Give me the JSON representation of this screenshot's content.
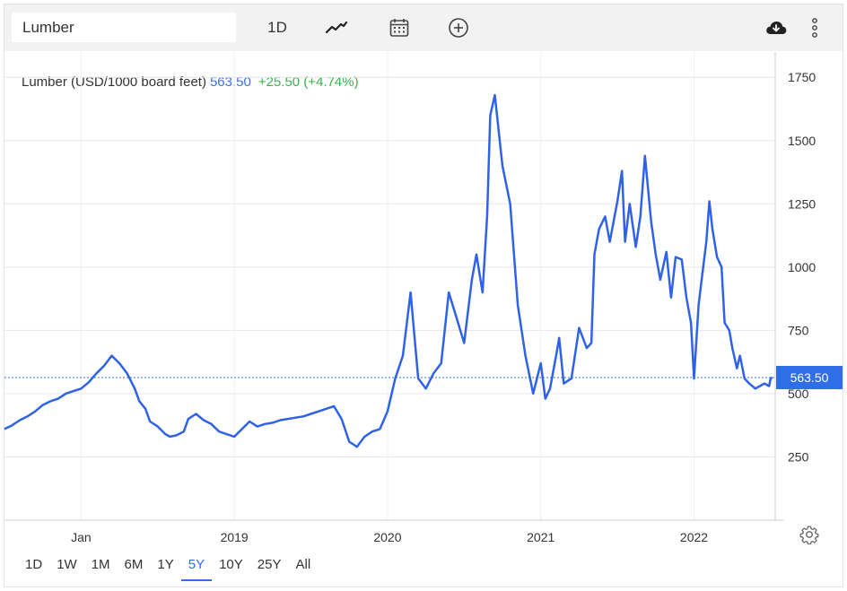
{
  "toolbar": {
    "symbol": "Lumber",
    "interval": "1D",
    "icons": [
      "line-chart-icon",
      "calendar-icon",
      "plus-circle-icon",
      "cloud-download-icon",
      "more-vertical-icon"
    ]
  },
  "colors": {
    "line": "#2f62e8",
    "price_tag": "#2f6ee6",
    "positive": "#36b24a",
    "grid": "#e6e6e6"
  },
  "range_buttons": [
    "1D",
    "1W",
    "1M",
    "6M",
    "1Y",
    "5Y",
    "10Y",
    "25Y",
    "All"
  ],
  "active_range": "5Y",
  "chart_data": {
    "type": "line",
    "title": "Lumber (USD/1000 board feet)",
    "last_value": "563.50",
    "change": "+25.50 (+4.74%)",
    "price_tag": "563.50",
    "x_labels": [
      "Jan",
      "2019",
      "2020",
      "2021",
      "2022"
    ],
    "y_ticks": [
      "1750",
      "1500",
      "1250",
      "1000",
      "750",
      "500",
      "250"
    ],
    "y_range": [
      0,
      1850
    ],
    "x_range": [
      2017.5,
      2022.53
    ],
    "y_axis_position": "right",
    "grid": true,
    "series": [
      {
        "x": [
          2017.5,
          2017.55,
          2017.6,
          2017.65,
          2017.7,
          2017.75,
          2017.8,
          2017.85,
          2017.9,
          2017.95,
          2018.0,
          2018.05,
          2018.1,
          2018.15,
          2018.2,
          2018.25,
          2018.3,
          2018.35,
          2018.38,
          2018.42,
          2018.45,
          2018.5,
          2018.55,
          2018.58,
          2018.62,
          2018.67,
          2018.7,
          2018.75,
          2018.8,
          2018.85,
          2018.9,
          2018.95,
          2019.0,
          2019.05,
          2019.1,
          2019.15,
          2019.2,
          2019.25,
          2019.3,
          2019.35,
          2019.4,
          2019.45,
          2019.5,
          2019.55,
          2019.6,
          2019.65,
          2019.7,
          2019.75,
          2019.8,
          2019.85,
          2019.9,
          2019.95,
          2020.0,
          2020.05,
          2020.1,
          2020.15,
          2020.2,
          2020.25,
          2020.3,
          2020.35,
          2020.4,
          2020.45,
          2020.5,
          2020.55,
          2020.58,
          2020.62,
          2020.65,
          2020.67,
          2020.7,
          2020.75,
          2020.8,
          2020.85,
          2020.9,
          2020.95,
          2021.0,
          2021.03,
          2021.06,
          2021.1,
          2021.12,
          2021.15,
          2021.2,
          2021.25,
          2021.3,
          2021.33,
          2021.35,
          2021.38,
          2021.42,
          2021.45,
          2021.5,
          2021.53,
          2021.55,
          2021.58,
          2021.62,
          2021.65,
          2021.68,
          2021.72,
          2021.75,
          2021.78,
          2021.82,
          2021.85,
          2021.88,
          2021.92,
          2021.95,
          2021.98,
          2022.0,
          2022.03,
          2022.05,
          2022.08,
          2022.1,
          2022.12,
          2022.15,
          2022.18,
          2022.2,
          2022.23,
          2022.25,
          2022.28,
          2022.3,
          2022.33,
          2022.36,
          2022.4,
          2022.43,
          2022.46,
          2022.49,
          2022.5,
          2022.51
        ],
        "y": [
          360,
          375,
          395,
          410,
          430,
          455,
          470,
          480,
          500,
          510,
          520,
          545,
          580,
          610,
          650,
          620,
          580,
          520,
          470,
          440,
          390,
          370,
          340,
          330,
          335,
          350,
          400,
          420,
          395,
          380,
          350,
          340,
          330,
          360,
          390,
          370,
          380,
          385,
          395,
          400,
          405,
          410,
          420,
          430,
          440,
          450,
          400,
          310,
          290,
          330,
          350,
          360,
          430,
          560,
          650,
          900,
          560,
          520,
          580,
          620,
          900,
          800,
          700,
          950,
          1050,
          900,
          1200,
          1600,
          1680,
          1400,
          1250,
          850,
          650,
          500,
          620,
          480,
          520,
          650,
          720,
          540,
          560,
          760,
          680,
          700,
          1050,
          1150,
          1200,
          1100,
          1260,
          1380,
          1100,
          1250,
          1080,
          1200,
          1440,
          1180,
          1050,
          950,
          1060,
          880,
          1040,
          1030,
          880,
          780,
          560,
          850,
          950,
          1100,
          1260,
          1150,
          1040,
          1000,
          780,
          750,
          680,
          600,
          650,
          560,
          540,
          520,
          530,
          540,
          530,
          560,
          563.5
        ]
      }
    ]
  }
}
